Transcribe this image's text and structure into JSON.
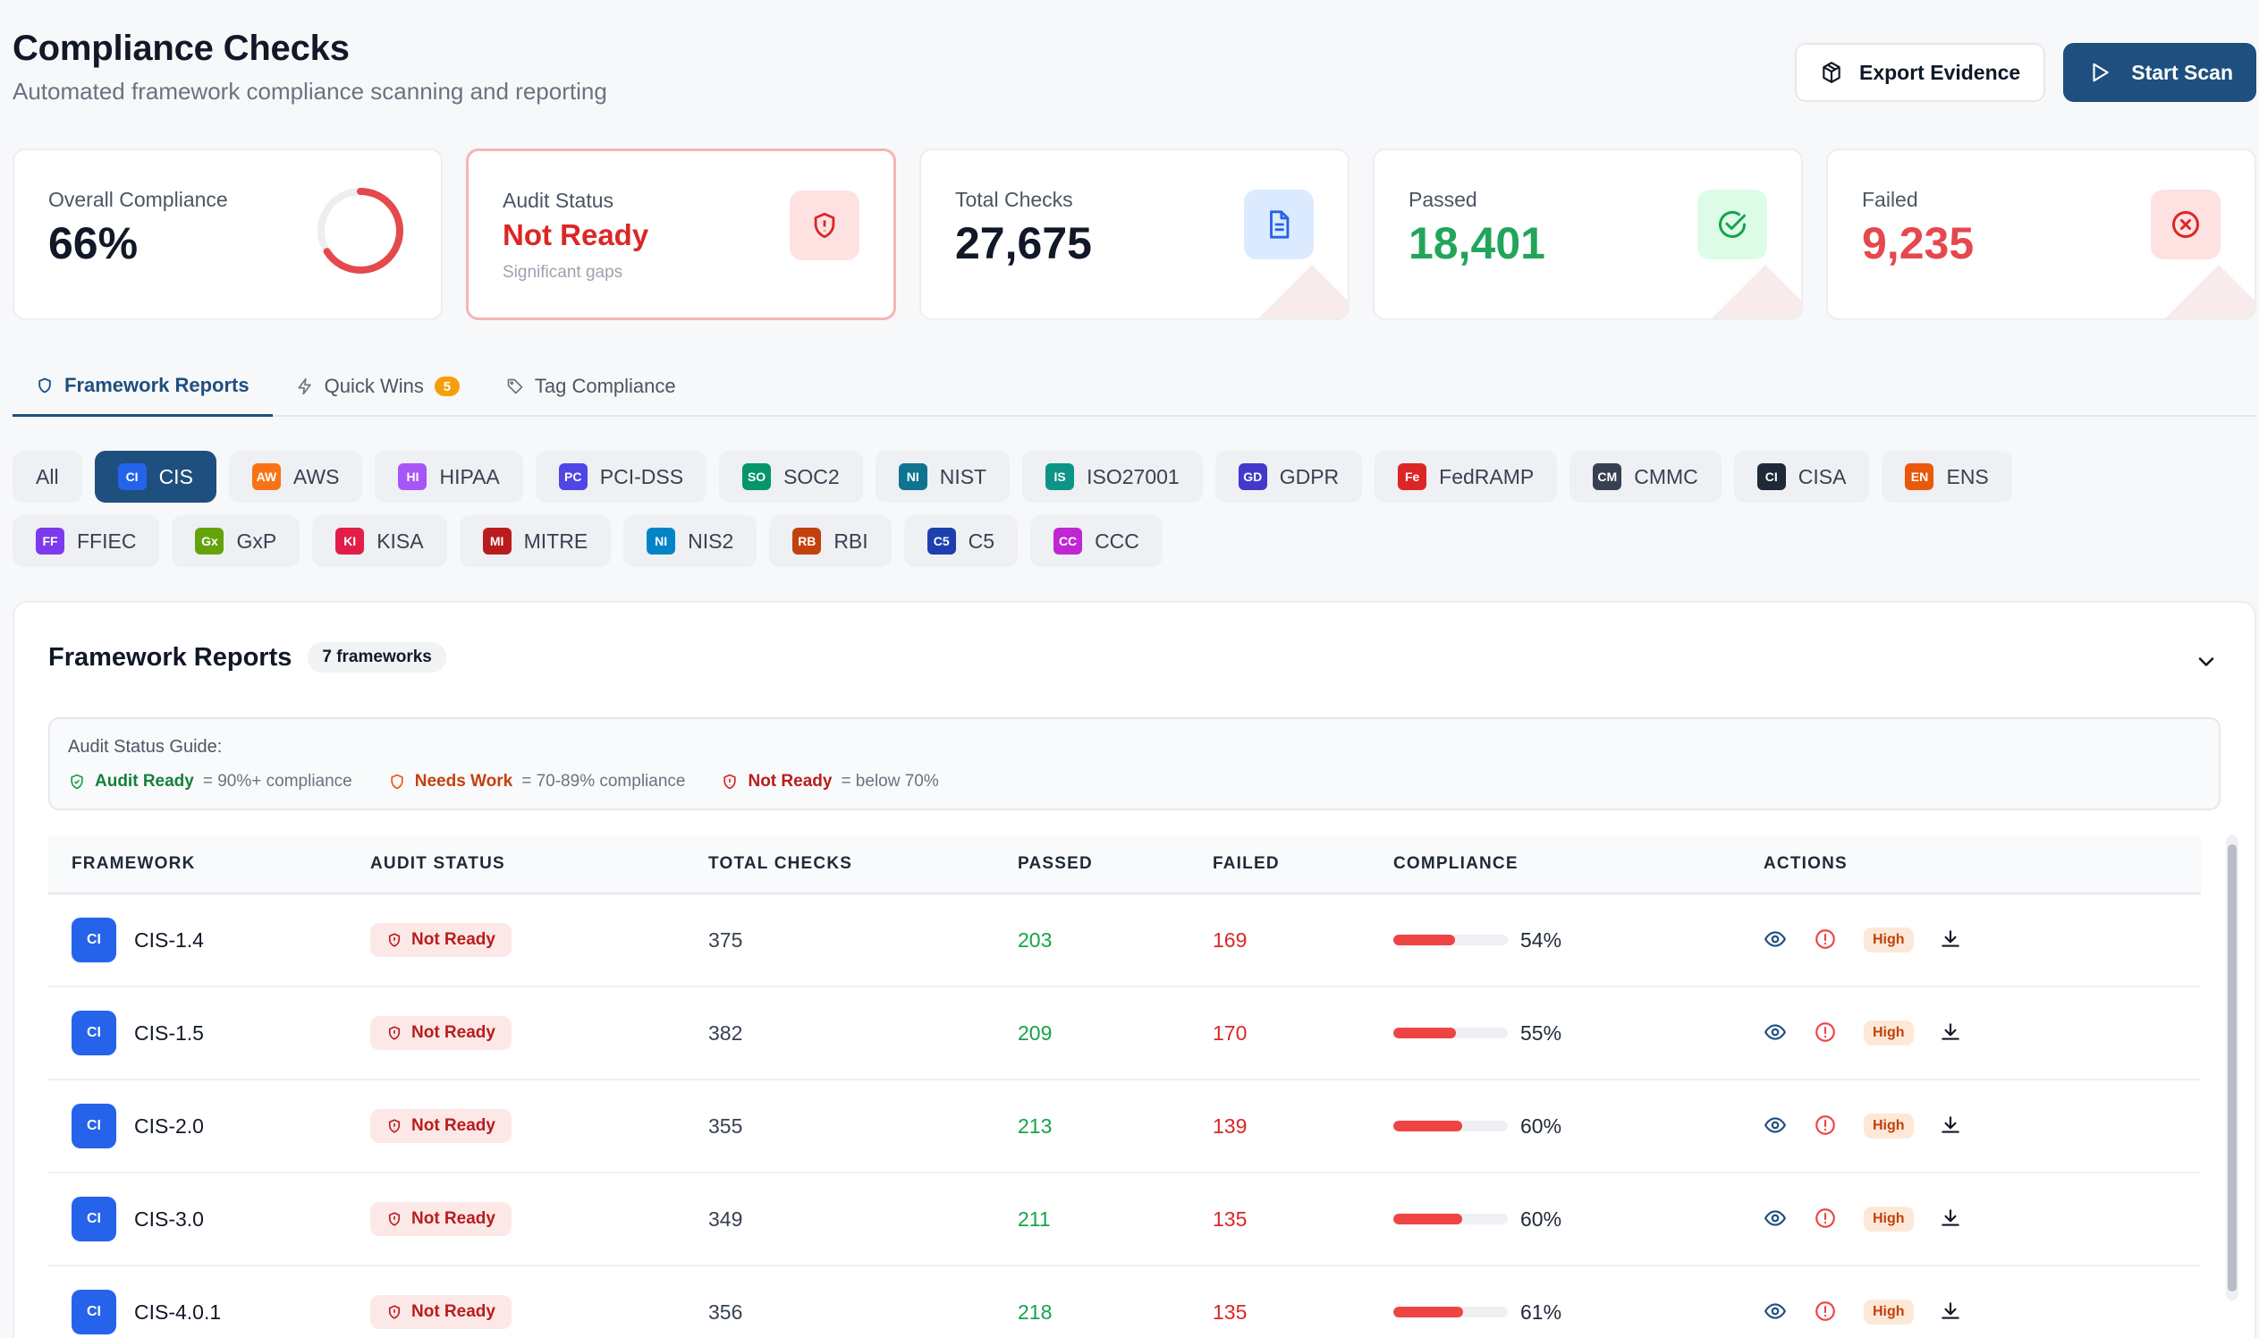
{
  "header": {
    "title": "Compliance Checks",
    "subtitle": "Automated framework compliance scanning and reporting",
    "export_label": "Export Evidence",
    "scan_label": "Start Scan"
  },
  "stats": {
    "overall": {
      "label": "Overall Compliance",
      "value": "66%",
      "percent": 66
    },
    "audit": {
      "label": "Audit Status",
      "value": "Not Ready",
      "note": "Significant gaps"
    },
    "total": {
      "label": "Total Checks",
      "value": "27,675"
    },
    "passed": {
      "label": "Passed",
      "value": "18,401"
    },
    "failed": {
      "label": "Failed",
      "value": "9,235"
    }
  },
  "tabs": [
    {
      "label": "Framework Reports",
      "icon": "shield-icon"
    },
    {
      "label": "Quick Wins",
      "icon": "bolt-icon",
      "badge": "5"
    },
    {
      "label": "Tag Compliance",
      "icon": "tag-icon"
    }
  ],
  "filters": [
    {
      "label": "All"
    },
    {
      "code": "CI",
      "label": "CIS",
      "color": "#2563eb"
    },
    {
      "code": "AW",
      "label": "AWS",
      "color": "#f97316"
    },
    {
      "code": "HI",
      "label": "HIPAA",
      "color": "#a855f7"
    },
    {
      "code": "PC",
      "label": "PCI-DSS",
      "color": "#4f46e5"
    },
    {
      "code": "SO",
      "label": "SOC2",
      "color": "#059669"
    },
    {
      "code": "NI",
      "label": "NIST",
      "color": "#0e7490"
    },
    {
      "code": "IS",
      "label": "ISO27001",
      "color": "#0d9488"
    },
    {
      "code": "GD",
      "label": "GDPR",
      "color": "#4338ca"
    },
    {
      "code": "Fe",
      "label": "FedRAMP",
      "color": "#dc2626"
    },
    {
      "code": "CM",
      "label": "CMMC",
      "color": "#374151"
    },
    {
      "code": "CI",
      "label": "CISA",
      "color": "#1f2937"
    },
    {
      "code": "EN",
      "label": "ENS",
      "color": "#ea580c"
    },
    {
      "code": "FF",
      "label": "FFIEC",
      "color": "#7c3aed"
    },
    {
      "code": "Gx",
      "label": "GxP",
      "color": "#65a30d"
    },
    {
      "code": "KI",
      "label": "KISA",
      "color": "#e11d48"
    },
    {
      "code": "MI",
      "label": "MITRE",
      "color": "#b91c1c"
    },
    {
      "code": "NI",
      "label": "NIS2",
      "color": "#0284c7"
    },
    {
      "code": "RB",
      "label": "RBI",
      "color": "#c2410c"
    },
    {
      "code": "C5",
      "label": "C5",
      "color": "#1e40af"
    },
    {
      "code": "CC",
      "label": "CCC",
      "color": "#c026d3"
    }
  ],
  "panel": {
    "title": "Framework Reports",
    "count": "7 frameworks",
    "guide": {
      "title": "Audit Status Guide:",
      "ready": "Audit Ready",
      "ready_desc": "= 90%+ compliance",
      "work": "Needs Work",
      "work_desc": "= 70-89% compliance",
      "notready": "Not Ready",
      "notready_desc": "= below 70%"
    },
    "columns": [
      "FRAMEWORK",
      "AUDIT STATUS",
      "TOTAL CHECKS",
      "PASSED",
      "FAILED",
      "COMPLIANCE",
      "ACTIONS"
    ],
    "rows": [
      {
        "code": "CI",
        "name": "CIS-1.4",
        "status": "Not Ready",
        "total": "375",
        "passed": "203",
        "failed": "169",
        "compliance": "54%",
        "pct": 54,
        "severity": "High"
      },
      {
        "code": "CI",
        "name": "CIS-1.5",
        "status": "Not Ready",
        "total": "382",
        "passed": "209",
        "failed": "170",
        "compliance": "55%",
        "pct": 55,
        "severity": "High"
      },
      {
        "code": "CI",
        "name": "CIS-2.0",
        "status": "Not Ready",
        "total": "355",
        "passed": "213",
        "failed": "139",
        "compliance": "60%",
        "pct": 60,
        "severity": "High"
      },
      {
        "code": "CI",
        "name": "CIS-3.0",
        "status": "Not Ready",
        "total": "349",
        "passed": "211",
        "failed": "135",
        "compliance": "60%",
        "pct": 60,
        "severity": "High"
      },
      {
        "code": "CI",
        "name": "CIS-4.0.1",
        "status": "Not Ready",
        "total": "356",
        "passed": "218",
        "failed": "135",
        "compliance": "61%",
        "pct": 61,
        "severity": "High"
      }
    ]
  },
  "colors": {
    "primary": "#1e4f7f",
    "success": "#22a55b",
    "danger": "#e5484d",
    "warning": "#f59e0b"
  }
}
